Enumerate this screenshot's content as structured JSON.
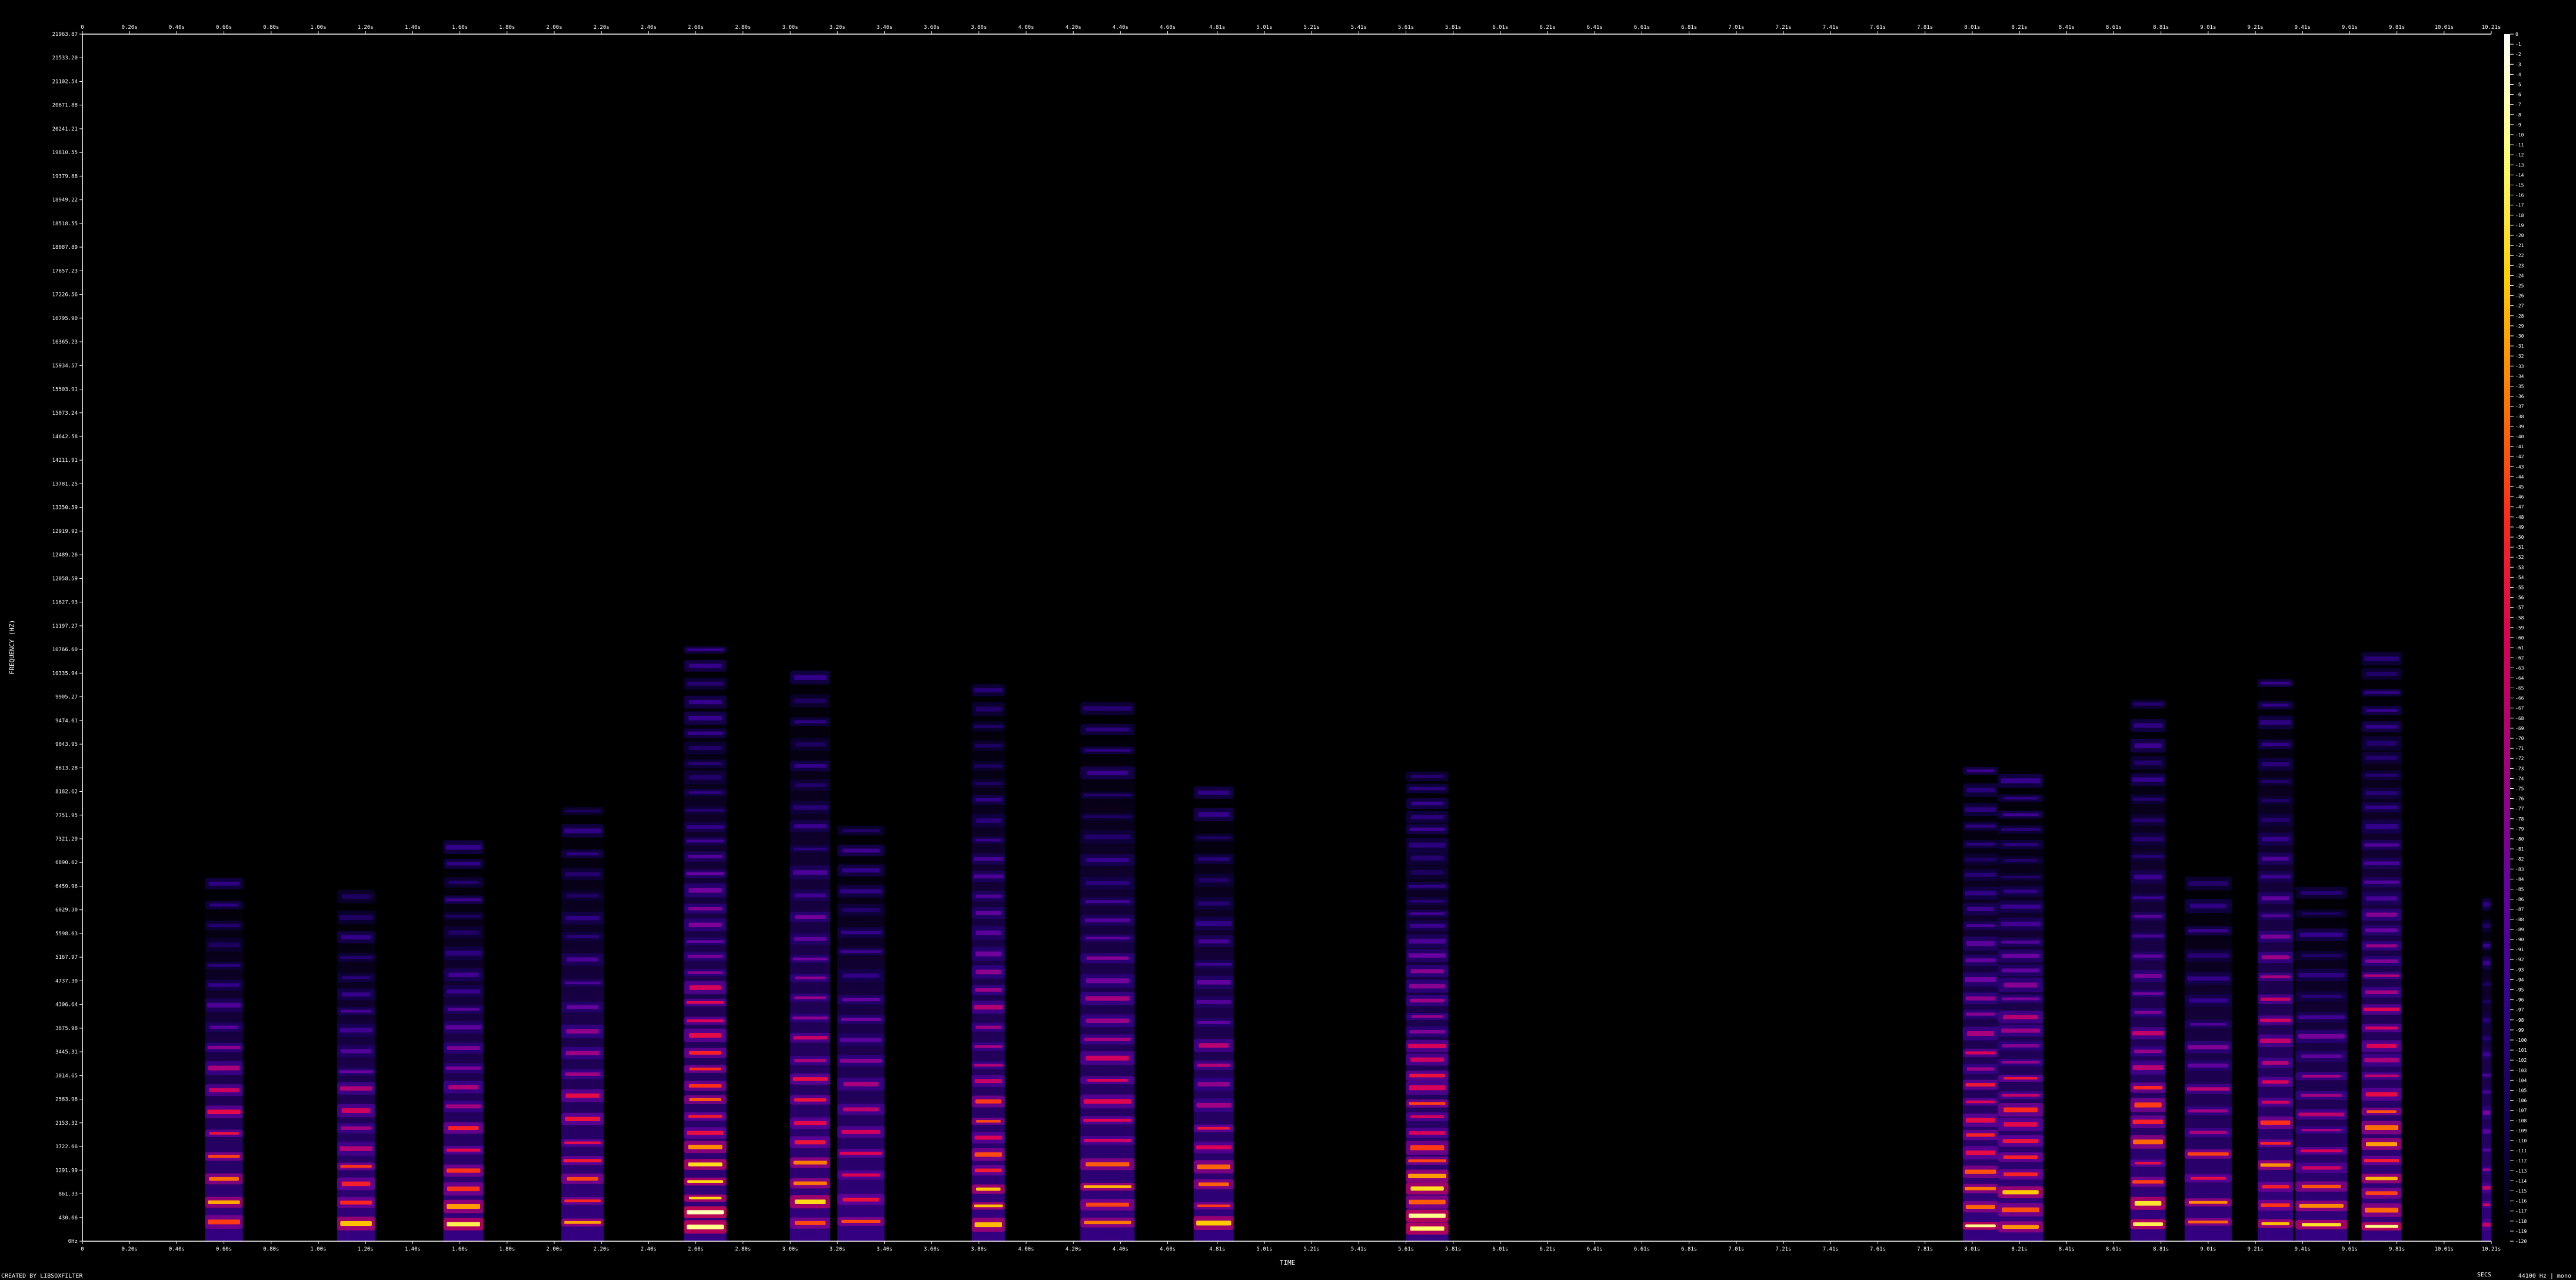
{
  "chart_data": {
    "type": "heatmap",
    "title": "",
    "xlabel": "TIME",
    "ylabel": "FREQUENCY (HZ)",
    "x_unit_label": "SECS",
    "footer_left": "CREATED BY LIBSOXFILTER",
    "footer_right": "44100 Hz | mono",
    "x_range_s": [
      0,
      10.21
    ],
    "y_range_hz": [
      0,
      21963.87
    ],
    "colorbar": {
      "range_db": [
        0,
        -120
      ],
      "colors": [
        "#ffffff",
        "#ffff70",
        "#ffd000",
        "#ff7a00",
        "#ff2a1a",
        "#dd0055",
        "#a7007e",
        "#6a00a0",
        "#34008c",
        "#140050",
        "#000000"
      ],
      "tick_labels": [
        "0",
        "-1",
        "-2",
        "-3",
        "-4",
        "-5",
        "-6",
        "-7",
        "-8",
        "-9",
        "-10",
        "-11",
        "-12",
        "-13",
        "-14",
        "-15",
        "-16",
        "-17",
        "-18",
        "-19",
        "-20",
        "-21",
        "-22",
        "-23",
        "-24",
        "-25",
        "-26",
        "-27",
        "-28",
        "-29",
        "-30",
        "-31",
        "-32",
        "-33",
        "-34",
        "-35",
        "-36",
        "-37",
        "-38",
        "-39",
        "-40",
        "-41",
        "-42",
        "-43",
        "-44",
        "-45",
        "-46",
        "-47",
        "-48",
        "-49",
        "-50",
        "-51",
        "-52",
        "-53",
        "-54",
        "-55",
        "-56",
        "-57",
        "-58",
        "-59",
        "-60",
        "-61",
        "-62",
        "-63",
        "-64",
        "-65",
        "-66",
        "-67",
        "-68",
        "-69",
        "-70",
        "-71",
        "-72",
        "-73",
        "-74",
        "-75",
        "-76",
        "-77",
        "-78",
        "-79",
        "-80",
        "-81",
        "-82",
        "-83",
        "-84",
        "-85",
        "-86",
        "-87",
        "-88",
        "-89",
        "-90",
        "-91",
        "-92",
        "-93",
        "-94",
        "-95",
        "-96",
        "-97",
        "-98",
        "-99",
        "-100",
        "-101",
        "-102",
        "-103",
        "-104",
        "-105",
        "-106",
        "-107",
        "-108",
        "-109",
        "-110",
        "-111",
        "-112",
        "-113",
        "-114",
        "-115",
        "-116",
        "-117",
        "-118",
        "-119",
        "-120"
      ]
    },
    "x_ticks": [
      {
        "value": 0,
        "label": "0"
      },
      {
        "value": 0.2,
        "label": "0.20s"
      },
      {
        "value": 0.4,
        "label": "0.40s"
      },
      {
        "value": 0.6,
        "label": "0.60s"
      },
      {
        "value": 0.8,
        "label": "0.80s"
      },
      {
        "value": 1.0,
        "label": "1.00s"
      },
      {
        "value": 1.2,
        "label": "1.20s"
      },
      {
        "value": 1.4,
        "label": "1.40s"
      },
      {
        "value": 1.6,
        "label": "1.60s"
      },
      {
        "value": 1.8,
        "label": "1.80s"
      },
      {
        "value": 2.0,
        "label": "2.00s"
      },
      {
        "value": 2.2,
        "label": "2.20s"
      },
      {
        "value": 2.4,
        "label": "2.40s"
      },
      {
        "value": 2.6,
        "label": "2.60s"
      },
      {
        "value": 2.8,
        "label": "2.80s"
      },
      {
        "value": 3.0,
        "label": "3.00s"
      },
      {
        "value": 3.2,
        "label": "3.20s"
      },
      {
        "value": 3.4,
        "label": "3.40s"
      },
      {
        "value": 3.6,
        "label": "3.60s"
      },
      {
        "value": 3.8,
        "label": "3.80s"
      },
      {
        "value": 4.0,
        "label": "4.00s"
      },
      {
        "value": 4.2,
        "label": "4.20s"
      },
      {
        "value": 4.4,
        "label": "4.40s"
      },
      {
        "value": 4.6,
        "label": "4.60s"
      },
      {
        "value": 4.81,
        "label": "4.81s"
      },
      {
        "value": 5.01,
        "label": "5.01s"
      },
      {
        "value": 5.21,
        "label": "5.21s"
      },
      {
        "value": 5.41,
        "label": "5.41s"
      },
      {
        "value": 5.61,
        "label": "5.61s"
      },
      {
        "value": 5.81,
        "label": "5.81s"
      },
      {
        "value": 6.01,
        "label": "6.01s"
      },
      {
        "value": 6.21,
        "label": "6.21s"
      },
      {
        "value": 6.41,
        "label": "6.41s"
      },
      {
        "value": 6.61,
        "label": "6.61s"
      },
      {
        "value": 6.81,
        "label": "6.81s"
      },
      {
        "value": 7.01,
        "label": "7.01s"
      },
      {
        "value": 7.21,
        "label": "7.21s"
      },
      {
        "value": 7.41,
        "label": "7.41s"
      },
      {
        "value": 7.61,
        "label": "7.61s"
      },
      {
        "value": 7.81,
        "label": "7.81s"
      },
      {
        "value": 8.01,
        "label": "8.01s"
      },
      {
        "value": 8.21,
        "label": "8.21s"
      },
      {
        "value": 8.41,
        "label": "8.41s"
      },
      {
        "value": 8.61,
        "label": "8.61s"
      },
      {
        "value": 8.81,
        "label": "8.81s"
      },
      {
        "value": 9.01,
        "label": "9.01s"
      },
      {
        "value": 9.21,
        "label": "9.21s"
      },
      {
        "value": 9.41,
        "label": "9.41s"
      },
      {
        "value": 9.61,
        "label": "9.61s"
      },
      {
        "value": 9.81,
        "label": "9.81s"
      },
      {
        "value": 10.01,
        "label": "10.01s"
      },
      {
        "value": 10.21,
        "label": "10.21s"
      }
    ],
    "y_ticks": [
      {
        "value": 0,
        "label": "0Hz"
      },
      {
        "value": 430.66,
        "label": "430.66"
      },
      {
        "value": 861.33,
        "label": "861.33"
      },
      {
        "value": 1291.99,
        "label": "1291.99"
      },
      {
        "value": 1722.66,
        "label": "1722.66"
      },
      {
        "value": 2153.32,
        "label": "2153.32"
      },
      {
        "value": 2583.98,
        "label": "2583.98"
      },
      {
        "value": 3014.65,
        "label": "3014.65"
      },
      {
        "value": 3445.31,
        "label": "3445.31"
      },
      {
        "value": 3875.98,
        "label": "3875.98"
      },
      {
        "value": 4306.64,
        "label": "4306.64"
      },
      {
        "value": 4737.3,
        "label": "4737.30"
      },
      {
        "value": 5167.97,
        "label": "5167.97"
      },
      {
        "value": 5598.63,
        "label": "5598.63"
      },
      {
        "value": 6029.3,
        "label": "6029.30"
      },
      {
        "value": 6459.96,
        "label": "6459.96"
      },
      {
        "value": 6890.62,
        "label": "6890.62"
      },
      {
        "value": 7321.29,
        "label": "7321.29"
      },
      {
        "value": 7751.95,
        "label": "7751.95"
      },
      {
        "value": 8182.62,
        "label": "8182.62"
      },
      {
        "value": 8613.28,
        "label": "8613.28"
      },
      {
        "value": 9043.95,
        "label": "9043.95"
      },
      {
        "value": 9474.61,
        "label": "9474.61"
      },
      {
        "value": 9905.27,
        "label": "9905.27"
      },
      {
        "value": 10335.94,
        "label": "10335.94"
      },
      {
        "value": 10766.6,
        "label": "10766.60"
      },
      {
        "value": 11197.27,
        "label": "11197.27"
      },
      {
        "value": 11627.93,
        "label": "11627.93"
      },
      {
        "value": 12058.59,
        "label": "12058.59"
      },
      {
        "value": 12489.26,
        "label": "12489.26"
      },
      {
        "value": 12919.92,
        "label": "12919.92"
      },
      {
        "value": 13350.59,
        "label": "13350.59"
      },
      {
        "value": 13781.25,
        "label": "13781.25"
      },
      {
        "value": 14211.91,
        "label": "14211.91"
      },
      {
        "value": 14642.58,
        "label": "14642.58"
      },
      {
        "value": 15073.24,
        "label": "15073.24"
      },
      {
        "value": 15503.91,
        "label": "15503.91"
      },
      {
        "value": 15934.57,
        "label": "15934.57"
      },
      {
        "value": 16365.23,
        "label": "16365.23"
      },
      {
        "value": 16795.9,
        "label": "16795.90"
      },
      {
        "value": 17226.56,
        "label": "17226.56"
      },
      {
        "value": 17657.23,
        "label": "17657.23"
      },
      {
        "value": 18087.89,
        "label": "18087.89"
      },
      {
        "value": 18518.55,
        "label": "18518.55"
      },
      {
        "value": 18949.22,
        "label": "18949.22"
      },
      {
        "value": 19379.88,
        "label": "19379.88"
      },
      {
        "value": 19810.55,
        "label": "19810.55"
      },
      {
        "value": 20241.21,
        "label": "20241.21"
      },
      {
        "value": 20671.88,
        "label": "20671.88"
      },
      {
        "value": 21102.54,
        "label": "21102.54"
      },
      {
        "value": 21533.2,
        "label": "21533.20"
      },
      {
        "value": 21963.87,
        "label": "21963.87"
      }
    ],
    "bursts": [
      {
        "start_s": 0.52,
        "end_s": 0.68,
        "max_hz": 6600,
        "f0_hz": 350,
        "level": 0.95
      },
      {
        "start_s": 1.08,
        "end_s": 1.24,
        "max_hz": 6300,
        "f0_hz": 320,
        "level": 0.9
      },
      {
        "start_s": 1.53,
        "end_s": 1.7,
        "max_hz": 7200,
        "f0_hz": 310,
        "level": 0.9
      },
      {
        "start_s": 2.03,
        "end_s": 2.21,
        "max_hz": 8000,
        "f0_hz": 340,
        "level": 0.9
      },
      {
        "start_s": 2.55,
        "end_s": 2.73,
        "max_hz": 10800,
        "f0_hz": 260,
        "level": 1.0
      },
      {
        "start_s": 3.0,
        "end_s": 3.17,
        "max_hz": 10600,
        "f0_hz": 330,
        "level": 0.92
      },
      {
        "start_s": 3.2,
        "end_s": 3.4,
        "max_hz": 7700,
        "f0_hz": 360,
        "level": 0.88
      },
      {
        "start_s": 3.77,
        "end_s": 3.91,
        "max_hz": 10300,
        "f0_hz": 300,
        "level": 0.93
      },
      {
        "start_s": 4.23,
        "end_s": 4.46,
        "max_hz": 9800,
        "f0_hz": 340,
        "level": 0.9
      },
      {
        "start_s": 4.71,
        "end_s": 4.88,
        "max_hz": 8300,
        "f0_hz": 330,
        "level": 0.9
      },
      {
        "start_s": 5.61,
        "end_s": 5.79,
        "max_hz": 8600,
        "f0_hz": 230,
        "level": 1.0
      },
      {
        "start_s": 7.97,
        "end_s": 8.12,
        "max_hz": 8600,
        "f0_hz": 280,
        "level": 0.95
      },
      {
        "start_s": 8.12,
        "end_s": 8.31,
        "max_hz": 8600,
        "f0_hz": 260,
        "level": 0.97
      },
      {
        "start_s": 8.68,
        "end_s": 8.83,
        "max_hz": 9900,
        "f0_hz": 310,
        "level": 0.92
      },
      {
        "start_s": 8.91,
        "end_s": 9.11,
        "max_hz": 6700,
        "f0_hz": 350,
        "level": 0.9
      },
      {
        "start_s": 9.22,
        "end_s": 9.37,
        "max_hz": 10500,
        "f0_hz": 320,
        "level": 0.93
      },
      {
        "start_s": 9.38,
        "end_s": 9.6,
        "max_hz": 6500,
        "f0_hz": 300,
        "level": 0.9
      },
      {
        "start_s": 9.66,
        "end_s": 9.83,
        "max_hz": 10700,
        "f0_hz": 270,
        "level": 0.97
      },
      {
        "start_s": 10.17,
        "end_s": 10.21,
        "max_hz": 6400,
        "f0_hz": 300,
        "level": 0.6
      }
    ],
    "grid": false,
    "legend": "colorbar right"
  }
}
